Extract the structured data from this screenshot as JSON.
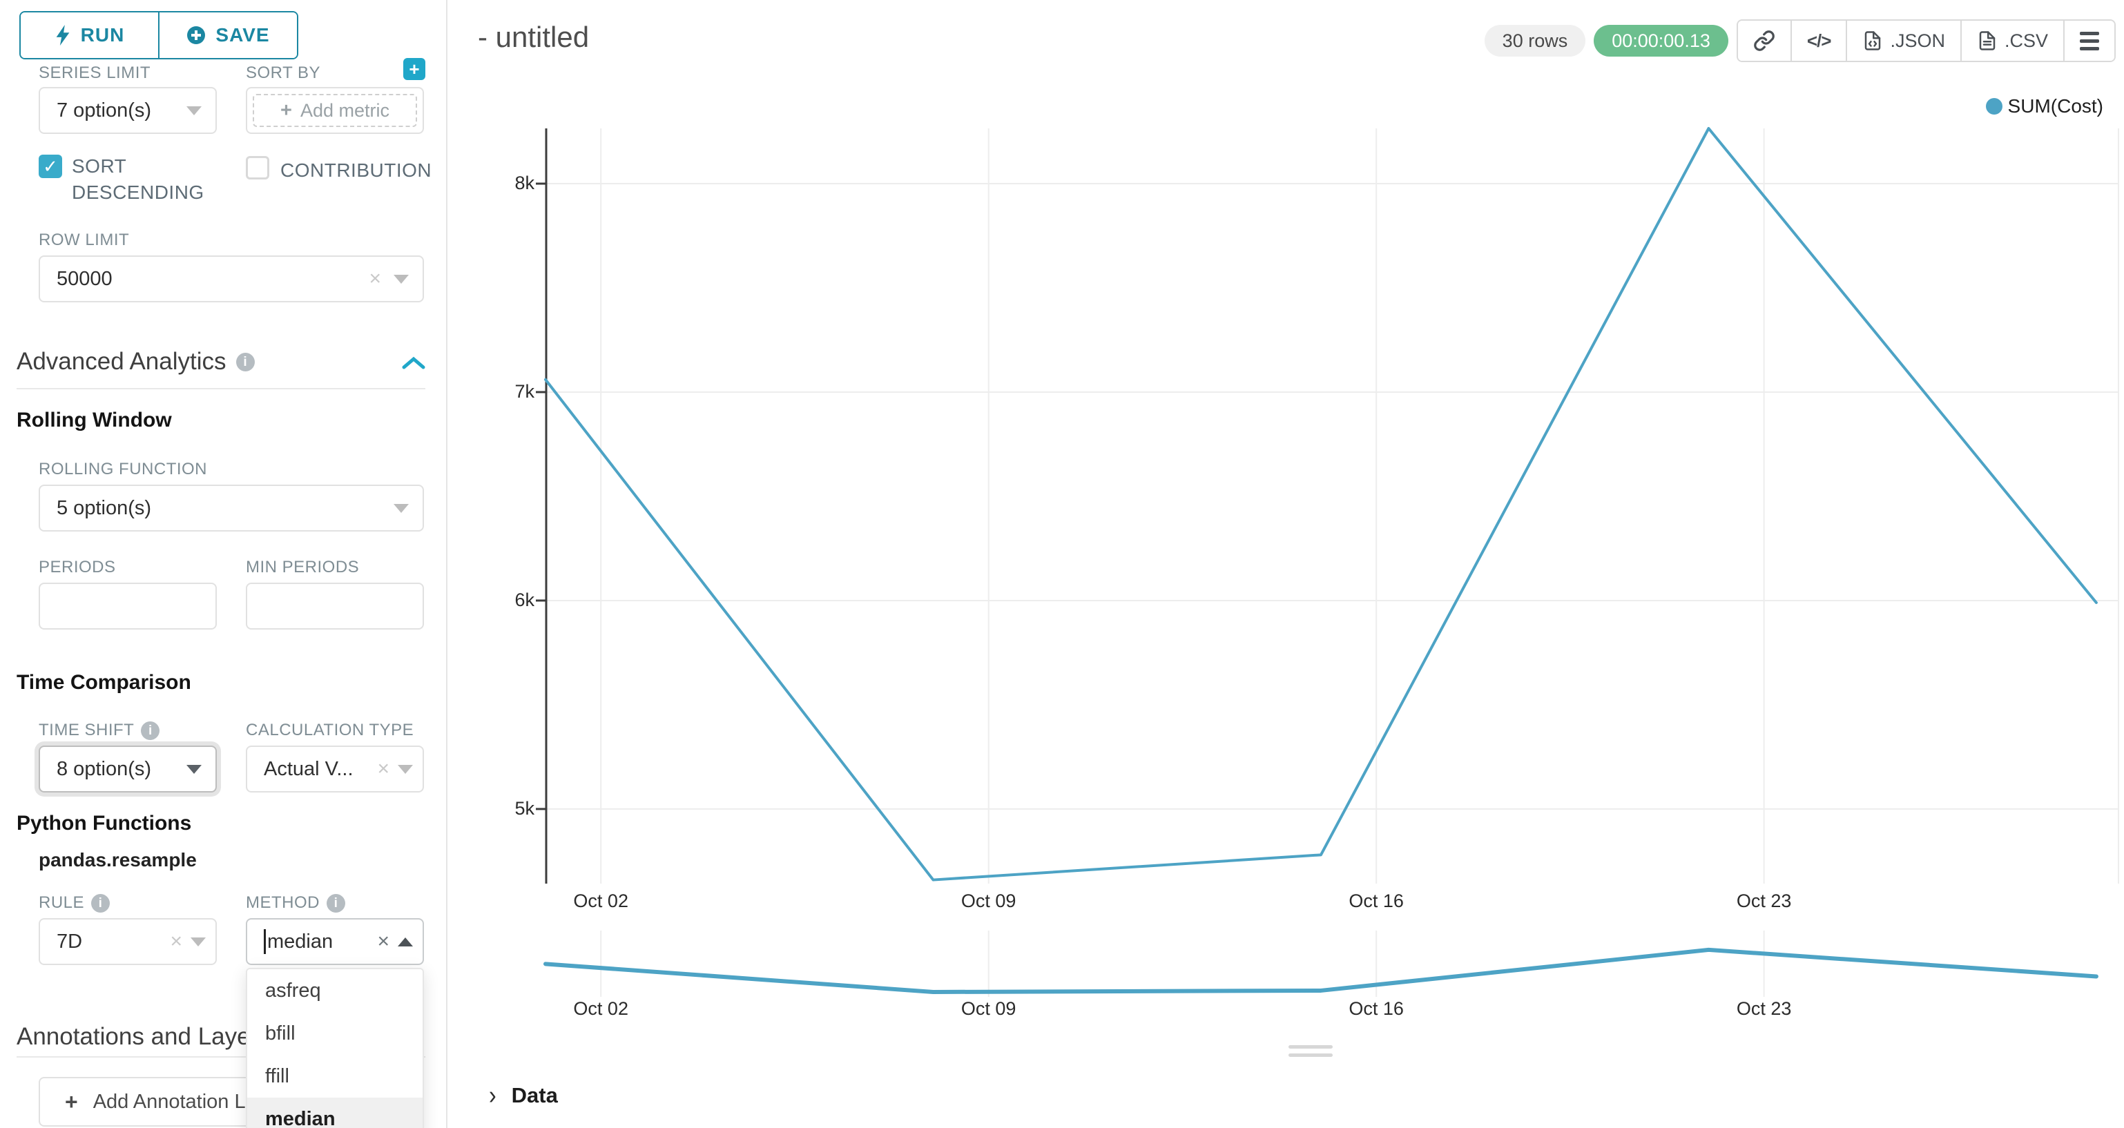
{
  "toolbar": {
    "run_label": "RUN",
    "save_label": "SAVE",
    "rows_badge": "30 rows",
    "timer_badge": "00:00:00.13",
    "json_label": ".JSON",
    "csv_label": ".CSV"
  },
  "sidebar": {
    "series_limit": {
      "label": "SERIES LIMIT",
      "value": "7 option(s)"
    },
    "sort_by": {
      "label": "SORT BY",
      "placeholder": "Add metric"
    },
    "sort_descending": {
      "label": "SORT DESCENDING",
      "checked": "true"
    },
    "contribution": {
      "label": "CONTRIBUTION",
      "checked": "false"
    },
    "row_limit": {
      "label": "ROW LIMIT",
      "value": "50000"
    },
    "advanced_analytics": {
      "title": "Advanced Analytics"
    },
    "rolling_window": {
      "title": "Rolling Window",
      "rolling_function": {
        "label": "ROLLING FUNCTION",
        "value": "5 option(s)"
      },
      "periods": {
        "label": "PERIODS",
        "value": ""
      },
      "min_periods": {
        "label": "MIN PERIODS",
        "value": ""
      }
    },
    "time_comparison": {
      "title": "Time Comparison",
      "time_shift": {
        "label": "TIME SHIFT",
        "value": "8 option(s)"
      },
      "calculation_type": {
        "label": "CALCULATION TYPE",
        "value": "Actual V..."
      }
    },
    "python_functions": {
      "title": "Python Functions",
      "subtitle": "pandas.resample",
      "rule": {
        "label": "RULE",
        "value": "7D"
      },
      "method": {
        "label": "METHOD",
        "value": "median",
        "options": [
          "asfreq",
          "bfill",
          "ffill",
          "median"
        ],
        "selected": "median"
      }
    },
    "annotations": {
      "title": "Annotations and Layers",
      "add_button": "Add Annotation Layer"
    }
  },
  "main": {
    "title": "- untitled",
    "data_panel_label": "Data"
  },
  "chart_data": {
    "type": "line",
    "legend_position": "top-right",
    "grid": "on",
    "series": [
      {
        "name": "SUM(Cost)",
        "color": "#4da3c5",
        "x_dates": [
          "Oct 01",
          "Oct 08",
          "Oct 15",
          "Oct 22",
          "Oct 29"
        ],
        "x_days": [
          1,
          8,
          15,
          22,
          29
        ],
        "values": [
          7060,
          4660,
          4780,
          8265,
          5990
        ]
      }
    ],
    "x_ticks": [
      {
        "day": 2,
        "label": "Oct 02"
      },
      {
        "day": 9,
        "label": "Oct 09"
      },
      {
        "day": 16,
        "label": "Oct 16"
      },
      {
        "day": 23,
        "label": "Oct 23"
      }
    ],
    "y_ticks": [
      {
        "value": 5000,
        "label": "5k"
      },
      {
        "value": 6000,
        "label": "6k"
      },
      {
        "value": 7000,
        "label": "7k"
      },
      {
        "value": 8000,
        "label": "8k"
      }
    ],
    "xlim_days": [
      1,
      29.4
    ],
    "main_ylim": [
      4642,
      8265
    ],
    "preview_ylim": [
      3301,
      10385
    ],
    "colors": {
      "gridline": "#ededed",
      "axis": "#3c3c3c",
      "accent": "#20a7c9",
      "accent_dark": "#1b87a2",
      "success": "#6cbf8e"
    }
  }
}
